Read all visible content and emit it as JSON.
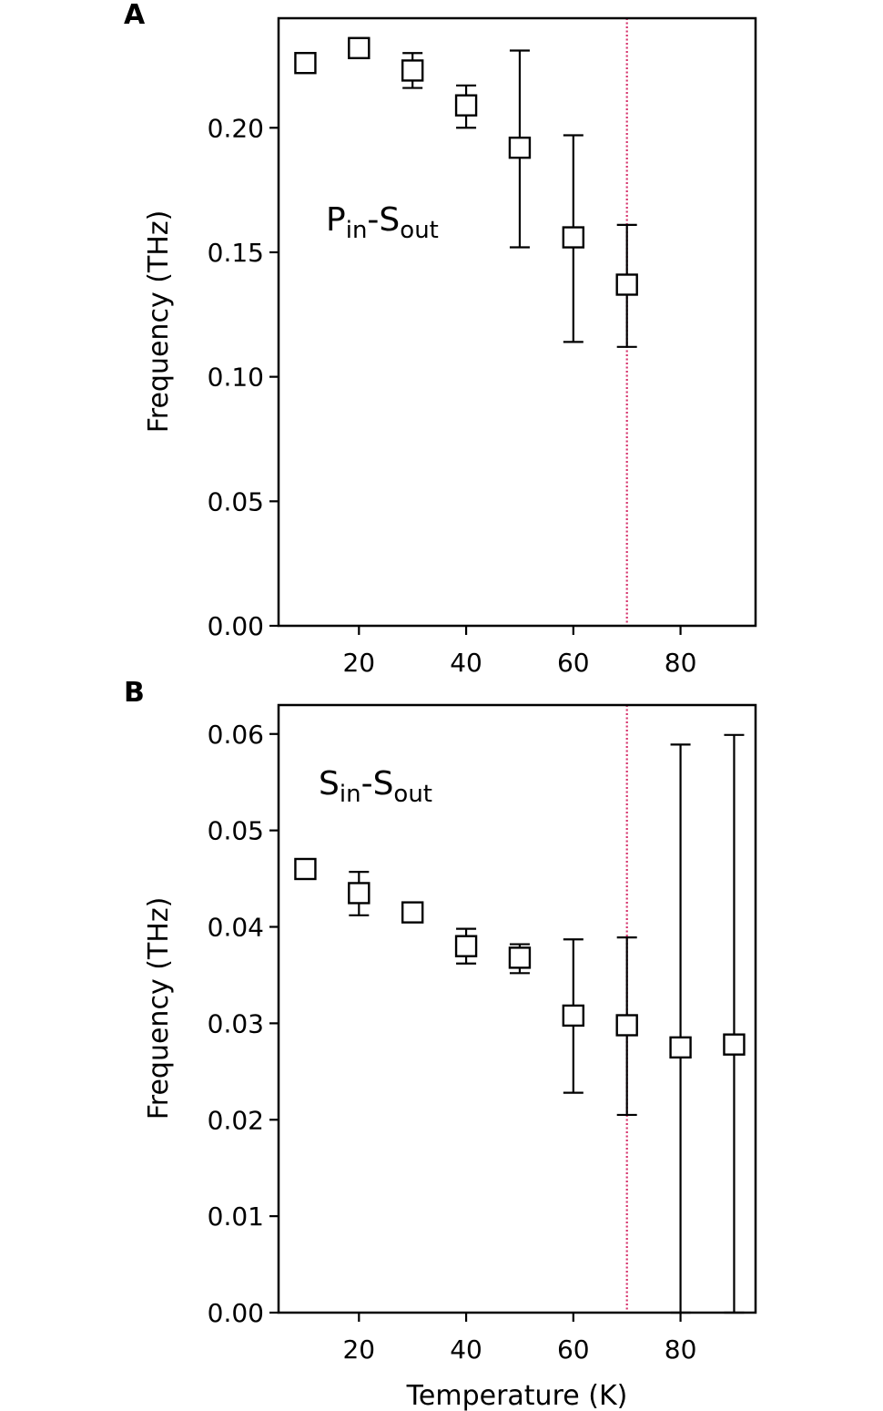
{
  "colors": {
    "marker": "#000000",
    "reference_line": "#d6336c"
  },
  "chart_data": [
    {
      "type": "scatter",
      "panel_label": "A",
      "annotation": {
        "main": "P",
        "sub": "in",
        "dash": "-",
        "main2": "S",
        "sub2": "out"
      },
      "xlabel": "",
      "ylabel": "Frequency (THz)",
      "xlim": [
        5,
        94
      ],
      "ylim": [
        0,
        0.244
      ],
      "xticks": [
        20,
        40,
        60,
        80
      ],
      "xtick_labels": [
        "20",
        "40",
        "60",
        "80"
      ],
      "yticks": [
        0,
        0.05,
        0.1,
        0.15,
        0.2
      ],
      "ytick_labels": [
        "0.00",
        "0.05",
        "0.10",
        "0.15",
        "0.20"
      ],
      "reference_line_x": 70,
      "marker": "open-square",
      "series": [
        {
          "x": [
            10,
            20,
            30,
            40,
            50,
            60,
            70
          ],
          "y": [
            0.226,
            0.232,
            0.223,
            0.209,
            0.192,
            0.156,
            0.137
          ],
          "y_err_low": [
            0.224,
            0.229,
            0.216,
            0.2,
            0.152,
            0.114,
            0.112
          ],
          "y_err_high": [
            0.228,
            0.236,
            0.23,
            0.217,
            0.231,
            0.197,
            0.161
          ]
        }
      ]
    },
    {
      "type": "scatter",
      "panel_label": "B",
      "annotation": {
        "main": "S",
        "sub": "in",
        "dash": "-",
        "main2": "S",
        "sub2": "out"
      },
      "xlabel": "Temperature (K)",
      "ylabel": "Frequency (THz)",
      "xlim": [
        5,
        94
      ],
      "ylim": [
        0,
        0.063
      ],
      "xticks": [
        20,
        40,
        60,
        80
      ],
      "xtick_labels": [
        "20",
        "40",
        "60",
        "80"
      ],
      "yticks": [
        0,
        0.01,
        0.02,
        0.03,
        0.04,
        0.05,
        0.06
      ],
      "ytick_labels": [
        "0.00",
        "0.01",
        "0.02",
        "0.03",
        "0.04",
        "0.05",
        "0.06"
      ],
      "reference_line_x": 70,
      "marker": "open-square",
      "series": [
        {
          "x": [
            10,
            20,
            30,
            40,
            50,
            60,
            70,
            80,
            90
          ],
          "y": [
            0.046,
            0.0435,
            0.0415,
            0.038,
            0.0368,
            0.0308,
            0.0298,
            0.0275,
            0.0278
          ],
          "y_err_low": [
            0.0452,
            0.0412,
            0.0407,
            0.0362,
            0.0352,
            0.0228,
            0.0205,
            0.0,
            0.0
          ],
          "y_err_high": [
            0.0468,
            0.0457,
            0.0423,
            0.0398,
            0.0382,
            0.0387,
            0.0389,
            0.0589,
            0.0599
          ]
        }
      ]
    }
  ]
}
